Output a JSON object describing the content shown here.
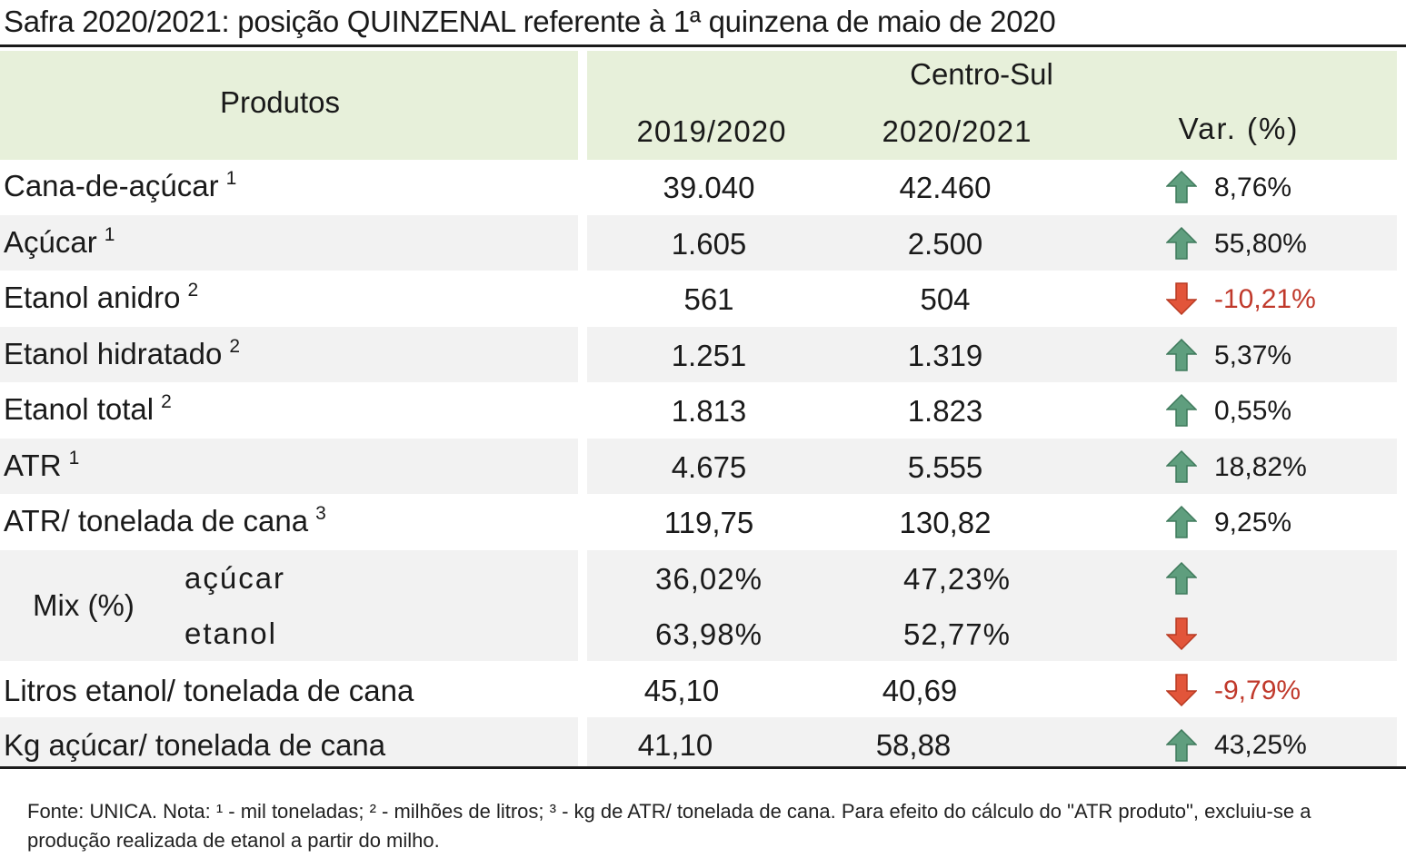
{
  "title": "Safra 2020/2021: posição QUINZENAL referente à 1ª quinzena de maio de 2020",
  "header": {
    "produtos": "Produtos",
    "region": "Centro-Sul",
    "col1": "2019/2020",
    "col2": "2020/2021",
    "col3": "Var. (%)"
  },
  "rows": [
    {
      "label": "Cana-de-açúcar",
      "sup": "1",
      "v1": "39.040",
      "v2": "42.460",
      "direction": "up",
      "var": "8,76%"
    },
    {
      "label": "Açúcar",
      "sup": "1",
      "v1": "1.605",
      "v2": "2.500",
      "direction": "up",
      "var": "55,80%"
    },
    {
      "label": "Etanol anidro",
      "sup": "2",
      "v1": "561",
      "v2": "504",
      "direction": "down",
      "var": "-10,21%"
    },
    {
      "label": "Etanol hidratado",
      "sup": "2",
      "v1": "1.251",
      "v2": "1.319",
      "direction": "up",
      "var": "5,37%"
    },
    {
      "label": "Etanol total",
      "sup": "2",
      "v1": "1.813",
      "v2": "1.823",
      "direction": "up",
      "var": "0,55%"
    },
    {
      "label": "ATR",
      "sup": "1",
      "v1": "4.675",
      "v2": "5.555",
      "direction": "up",
      "var": "18,82%"
    },
    {
      "label": "ATR/ tonelada de cana",
      "sup": "3",
      "v1": "119,75",
      "v2": "130,82",
      "direction": "up",
      "var": "9,25%"
    }
  ],
  "mix": {
    "label": "Mix (%)",
    "acucar": {
      "label": "açúcar",
      "v1": "36,02%",
      "v2": "47,23%",
      "direction": "up"
    },
    "etanol": {
      "label": "etanol",
      "v1": "63,98%",
      "v2": "52,77%",
      "direction": "down"
    }
  },
  "tail_rows": [
    {
      "label": "Litros etanol/ tonelada de cana",
      "v1": "45,10",
      "v2": "40,69",
      "direction": "down",
      "var": "-9,79%"
    },
    {
      "label": "Kg açúcar/ tonelada de cana",
      "v1": "41,10",
      "v2": "58,88",
      "direction": "up",
      "var": "43,25%"
    }
  ],
  "footnote": "Fonte: UNICA. Nota: ¹ - mil toneladas; ² - milhões de litros; ³ - kg de ATR/ tonelada de cana. Para efeito do cálculo do \"ATR produto\", excluiu-se a produção realizada de etanol a partir do milho.",
  "colors": {
    "up_arrow": "#5f9e7e",
    "down_arrow": "#e2553a",
    "negative_text": "#c0392b",
    "header_bg": "#e7f0da",
    "band_bg": "#f2f2f2"
  }
}
